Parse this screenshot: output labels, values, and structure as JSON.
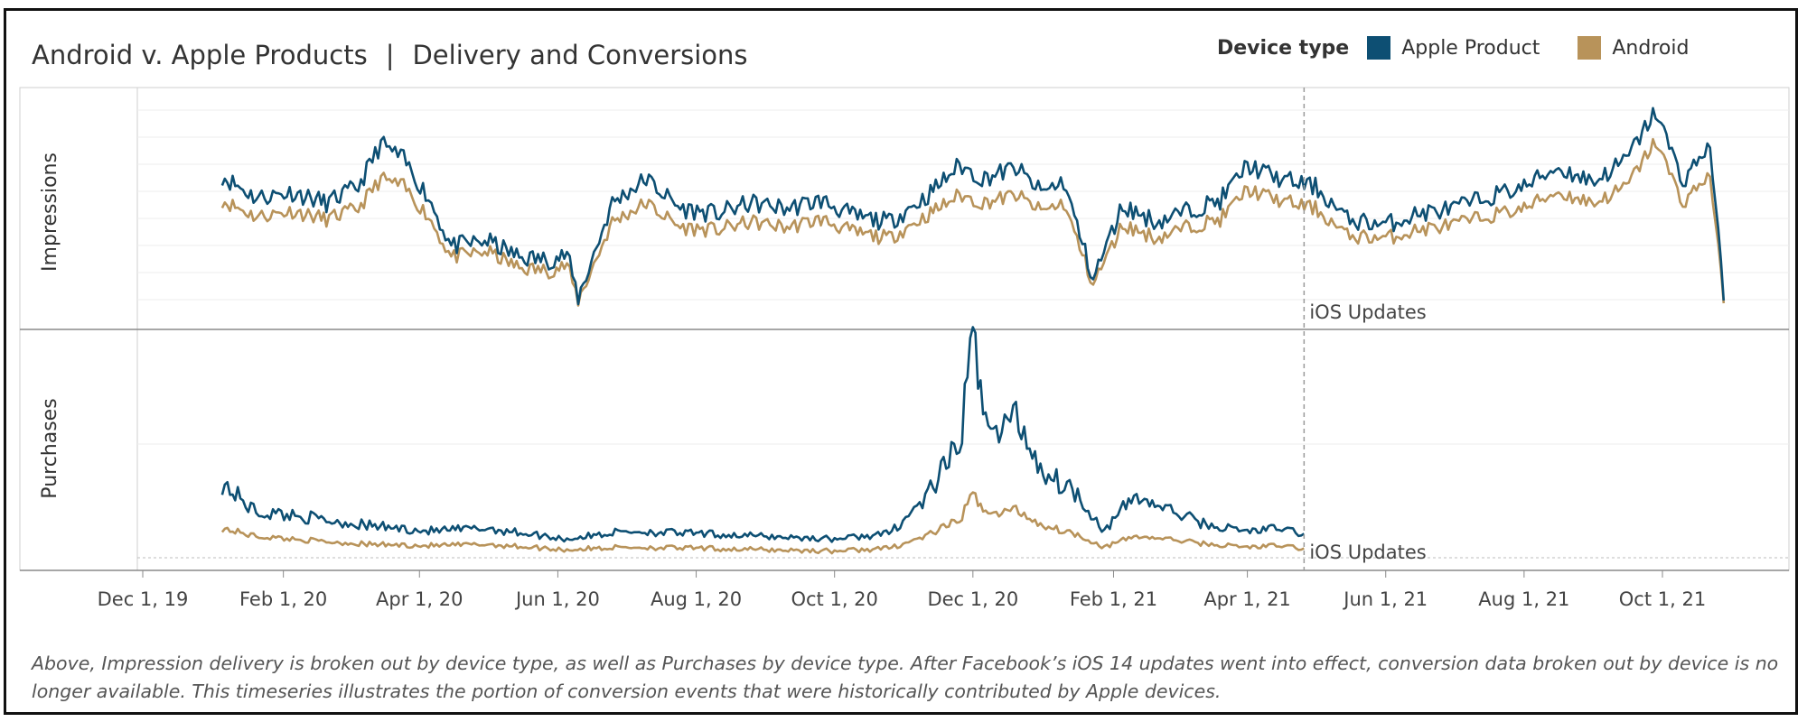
{
  "title_main": "Android v. Apple Products",
  "title_separator": "|",
  "title_sub": "Delivery and Conversions",
  "legend": {
    "title": "Device type",
    "items": [
      {
        "label": "Apple Product",
        "color": "#0d4f73"
      },
      {
        "label": "Android",
        "color": "#b8935a"
      }
    ]
  },
  "panels": {
    "impressions_label": "Impressions",
    "purchases_label": "Purchases"
  },
  "annotation": {
    "label": "iOS Updates",
    "date": "2021-04-26"
  },
  "footnote": "Above, Impression delivery is broken out by device type, as well as Purchases by device type. After Facebook’s iOS 14 updates went into effect, conversion data broken out by device is no longer available. This timeseries illustrates the portion of conversion events that were historically  contributed by Apple devices.",
  "chart_data": {
    "type": "line",
    "x_axis": {
      "type": "date",
      "ticks": [
        {
          "date": "2019-12-01",
          "label": "Dec 1, 19"
        },
        {
          "date": "2020-02-01",
          "label": "Feb 1, 20"
        },
        {
          "date": "2020-04-01",
          "label": "Apr 1, 20"
        },
        {
          "date": "2020-06-01",
          "label": "Jun 1, 20"
        },
        {
          "date": "2020-08-01",
          "label": "Aug 1, 20"
        },
        {
          "date": "2020-10-01",
          "label": "Oct 1, 20"
        },
        {
          "date": "2020-12-01",
          "label": "Dec 1, 20"
        },
        {
          "date": "2021-02-01",
          "label": "Feb 1, 21"
        },
        {
          "date": "2021-04-01",
          "label": "Apr 1, 21"
        },
        {
          "date": "2021-06-01",
          "label": "Jun 1, 21"
        },
        {
          "date": "2021-08-01",
          "label": "Aug 1, 21"
        },
        {
          "date": "2021-10-01",
          "label": "Oct 1, 21"
        }
      ],
      "range": [
        "2019-11-15",
        "2021-11-10"
      ]
    },
    "y_axes_labeled": false,
    "grid": true,
    "legend_position": "top-right",
    "panels": [
      {
        "name": "Impressions",
        "series": [
          {
            "name": "Apple Product",
            "color": "#0d4f73",
            "points": [
              [
                "2020-01-05",
                5.0
              ],
              [
                "2020-01-20",
                4.2
              ],
              [
                "2020-02-05",
                4.4
              ],
              [
                "2020-02-20",
                4.0
              ],
              [
                "2020-03-05",
                4.6
              ],
              [
                "2020-03-15",
                6.2
              ],
              [
                "2020-03-25",
                5.6
              ],
              [
                "2020-04-05",
                4.2
              ],
              [
                "2020-04-15",
                2.4
              ],
              [
                "2020-05-01",
                2.6
              ],
              [
                "2020-05-15",
                2.0
              ],
              [
                "2020-05-28",
                1.9
              ],
              [
                "2020-06-05",
                2.1
              ],
              [
                "2020-06-10",
                0.5
              ],
              [
                "2020-06-25",
                4.0
              ],
              [
                "2020-07-10",
                4.9
              ],
              [
                "2020-07-25",
                3.8
              ],
              [
                "2020-08-10",
                3.6
              ],
              [
                "2020-08-25",
                4.0
              ],
              [
                "2020-09-10",
                3.8
              ],
              [
                "2020-09-25",
                4.1
              ],
              [
                "2020-10-10",
                3.5
              ],
              [
                "2020-10-25",
                3.3
              ],
              [
                "2020-11-10",
                4.2
              ],
              [
                "2020-11-25",
                5.4
              ],
              [
                "2020-12-05",
                4.9
              ],
              [
                "2020-12-20",
                5.3
              ],
              [
                "2020-12-31",
                4.4
              ],
              [
                "2021-01-10",
                4.8
              ],
              [
                "2021-01-23",
                1.2
              ],
              [
                "2021-02-05",
                3.9
              ],
              [
                "2021-02-20",
                3.3
              ],
              [
                "2021-03-05",
                3.7
              ],
              [
                "2021-03-20",
                4.1
              ],
              [
                "2021-04-01",
                5.4
              ],
              [
                "2021-04-15",
                4.9
              ],
              [
                "2021-05-01",
                4.6
              ],
              [
                "2021-05-15",
                3.4
              ],
              [
                "2021-06-01",
                3.2
              ],
              [
                "2021-06-15",
                3.6
              ],
              [
                "2021-07-01",
                3.8
              ],
              [
                "2021-07-15",
                4.2
              ],
              [
                "2021-08-01",
                4.6
              ],
              [
                "2021-08-15",
                5.3
              ],
              [
                "2021-09-01",
                4.8
              ],
              [
                "2021-09-15",
                5.6
              ],
              [
                "2021-09-28",
                7.4
              ],
              [
                "2021-10-10",
                4.8
              ],
              [
                "2021-10-22",
                6.2
              ],
              [
                "2021-10-28",
                0.4
              ]
            ]
          },
          {
            "name": "Android",
            "color": "#b8935a",
            "points": [
              [
                "2020-01-05",
                4.1
              ],
              [
                "2020-01-20",
                3.5
              ],
              [
                "2020-02-05",
                3.7
              ],
              [
                "2020-02-20",
                3.4
              ],
              [
                "2020-03-05",
                3.8
              ],
              [
                "2020-03-15",
                4.9
              ],
              [
                "2020-03-25",
                4.6
              ],
              [
                "2020-04-05",
                3.5
              ],
              [
                "2020-04-15",
                2.0
              ],
              [
                "2020-05-01",
                2.2
              ],
              [
                "2020-05-15",
                1.6
              ],
              [
                "2020-05-28",
                1.5
              ],
              [
                "2020-06-05",
                1.7
              ],
              [
                "2020-06-10",
                0.4
              ],
              [
                "2020-06-25",
                3.3
              ],
              [
                "2020-07-10",
                4.0
              ],
              [
                "2020-07-25",
                3.1
              ],
              [
                "2020-08-10",
                3.0
              ],
              [
                "2020-08-25",
                3.3
              ],
              [
                "2020-09-10",
                3.1
              ],
              [
                "2020-09-25",
                3.4
              ],
              [
                "2020-10-10",
                2.9
              ],
              [
                "2020-10-25",
                2.7
              ],
              [
                "2020-11-10",
                3.5
              ],
              [
                "2020-11-25",
                4.3
              ],
              [
                "2020-12-05",
                4.0
              ],
              [
                "2020-12-20",
                4.3
              ],
              [
                "2020-12-31",
                3.7
              ],
              [
                "2021-01-10",
                4.0
              ],
              [
                "2021-01-23",
                1.0
              ],
              [
                "2021-02-05",
                3.2
              ],
              [
                "2021-02-20",
                2.7
              ],
              [
                "2021-03-05",
                3.1
              ],
              [
                "2021-03-20",
                3.4
              ],
              [
                "2021-04-01",
                4.5
              ],
              [
                "2021-04-15",
                4.1
              ],
              [
                "2021-05-01",
                3.8
              ],
              [
                "2021-05-15",
                2.8
              ],
              [
                "2021-06-01",
                2.7
              ],
              [
                "2021-06-15",
                3.0
              ],
              [
                "2021-07-01",
                3.2
              ],
              [
                "2021-07-15",
                3.5
              ],
              [
                "2021-08-01",
                3.8
              ],
              [
                "2021-08-15",
                4.4
              ],
              [
                "2021-09-01",
                4.0
              ],
              [
                "2021-09-15",
                4.6
              ],
              [
                "2021-09-28",
                6.3
              ],
              [
                "2021-10-10",
                4.0
              ],
              [
                "2021-10-22",
                5.1
              ],
              [
                "2021-10-28",
                0.3
              ]
            ]
          }
        ]
      },
      {
        "name": "Purchases",
        "series": [
          {
            "name": "Apple Product",
            "color": "#0d4f73",
            "points": [
              [
                "2020-01-05",
                2.8
              ],
              [
                "2020-01-20",
                1.7
              ],
              [
                "2020-02-05",
                1.6
              ],
              [
                "2020-02-20",
                1.4
              ],
              [
                "2020-03-10",
                1.2
              ],
              [
                "2020-04-05",
                1.0
              ],
              [
                "2020-05-01",
                1.1
              ],
              [
                "2020-06-05",
                0.7
              ],
              [
                "2020-07-01",
                1.0
              ],
              [
                "2020-08-01",
                0.9
              ],
              [
                "2020-09-01",
                0.8
              ],
              [
                "2020-10-01",
                0.7
              ],
              [
                "2020-10-25",
                0.9
              ],
              [
                "2020-11-10",
                2.2
              ],
              [
                "2020-11-25",
                4.2
              ],
              [
                "2020-12-01",
                8.0
              ],
              [
                "2020-12-10",
                4.5
              ],
              [
                "2020-12-20",
                5.3
              ],
              [
                "2021-01-01",
                3.2
              ],
              [
                "2021-01-15",
                2.5
              ],
              [
                "2021-01-28",
                1.0
              ],
              [
                "2021-02-10",
                2.3
              ],
              [
                "2021-02-25",
                1.8
              ],
              [
                "2021-03-15",
                1.2
              ],
              [
                "2021-04-01",
                1.0
              ],
              [
                "2021-04-15",
                1.1
              ],
              [
                "2021-04-26",
                0.9
              ]
            ]
          },
          {
            "name": "Android",
            "color": "#b8935a",
            "points": [
              [
                "2020-01-05",
                1.1
              ],
              [
                "2020-01-20",
                0.8
              ],
              [
                "2020-02-05",
                0.7
              ],
              [
                "2020-02-20",
                0.6
              ],
              [
                "2020-03-10",
                0.5
              ],
              [
                "2020-04-05",
                0.45
              ],
              [
                "2020-05-01",
                0.5
              ],
              [
                "2020-06-05",
                0.3
              ],
              [
                "2020-07-01",
                0.4
              ],
              [
                "2020-08-01",
                0.35
              ],
              [
                "2020-09-01",
                0.3
              ],
              [
                "2020-10-01",
                0.25
              ],
              [
                "2020-10-25",
                0.35
              ],
              [
                "2020-11-10",
                0.8
              ],
              [
                "2020-11-25",
                1.4
              ],
              [
                "2020-12-01",
                2.3
              ],
              [
                "2020-12-10",
                1.6
              ],
              [
                "2020-12-20",
                1.8
              ],
              [
                "2021-01-01",
                1.2
              ],
              [
                "2021-01-15",
                0.9
              ],
              [
                "2021-01-28",
                0.4
              ],
              [
                "2021-02-10",
                0.8
              ],
              [
                "2021-02-25",
                0.7
              ],
              [
                "2021-03-15",
                0.5
              ],
              [
                "2021-04-01",
                0.4
              ],
              [
                "2021-04-15",
                0.45
              ],
              [
                "2021-04-26",
                0.35
              ]
            ]
          }
        ]
      }
    ]
  }
}
